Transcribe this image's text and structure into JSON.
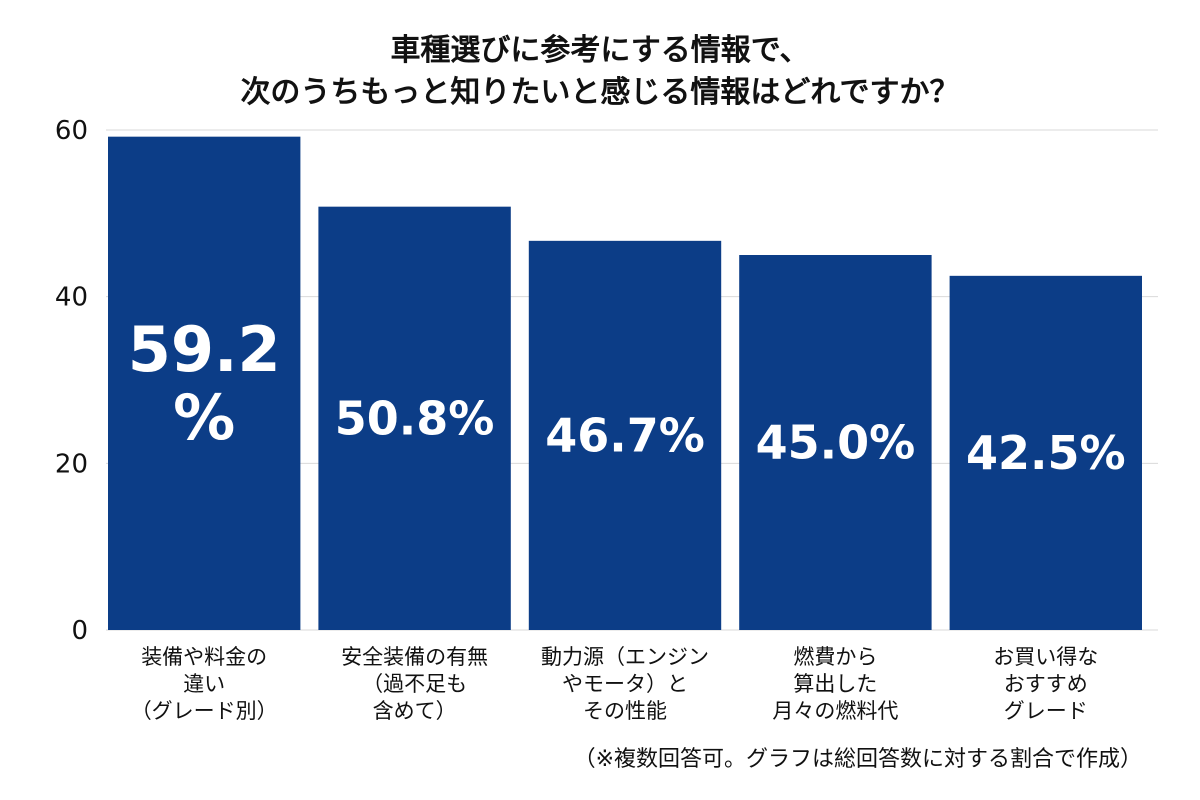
{
  "chart_data": {
    "type": "bar",
    "title": [
      "車種選びに参考にする情報で、",
      "次のうちもっと知りたいと感じる情報はどれですか？"
    ],
    "categories": [
      [
        "装備や料金の",
        "違い",
        "（グレード別）"
      ],
      [
        "安全装備の有無",
        "（過不足も",
        "含めて）"
      ],
      [
        "動力源（エンジン",
        "やモータ）と",
        "その性能"
      ],
      [
        "燃費から",
        "算出した",
        "月々の燃料代"
      ],
      [
        "お買い得な",
        "おすすめ",
        "グレード"
      ]
    ],
    "values": [
      59.2,
      50.8,
      46.7,
      45.0,
      42.5
    ],
    "value_labels": [
      [
        "59.2",
        "%"
      ],
      [
        "50.8%"
      ],
      [
        "46.7%"
      ],
      [
        "45.0%"
      ],
      [
        "42.5%"
      ]
    ],
    "ylim": [
      0,
      60
    ],
    "yticks": [
      0,
      20,
      40,
      60
    ],
    "ytick_labels": [
      "0",
      "20",
      "40",
      "60"
    ],
    "xlabel": "",
    "ylabel": "",
    "grid": true,
    "bar_color": "#0c3d87",
    "footnote": "（※複数回答可。グラフは総回答数に対する割合で作成）"
  }
}
